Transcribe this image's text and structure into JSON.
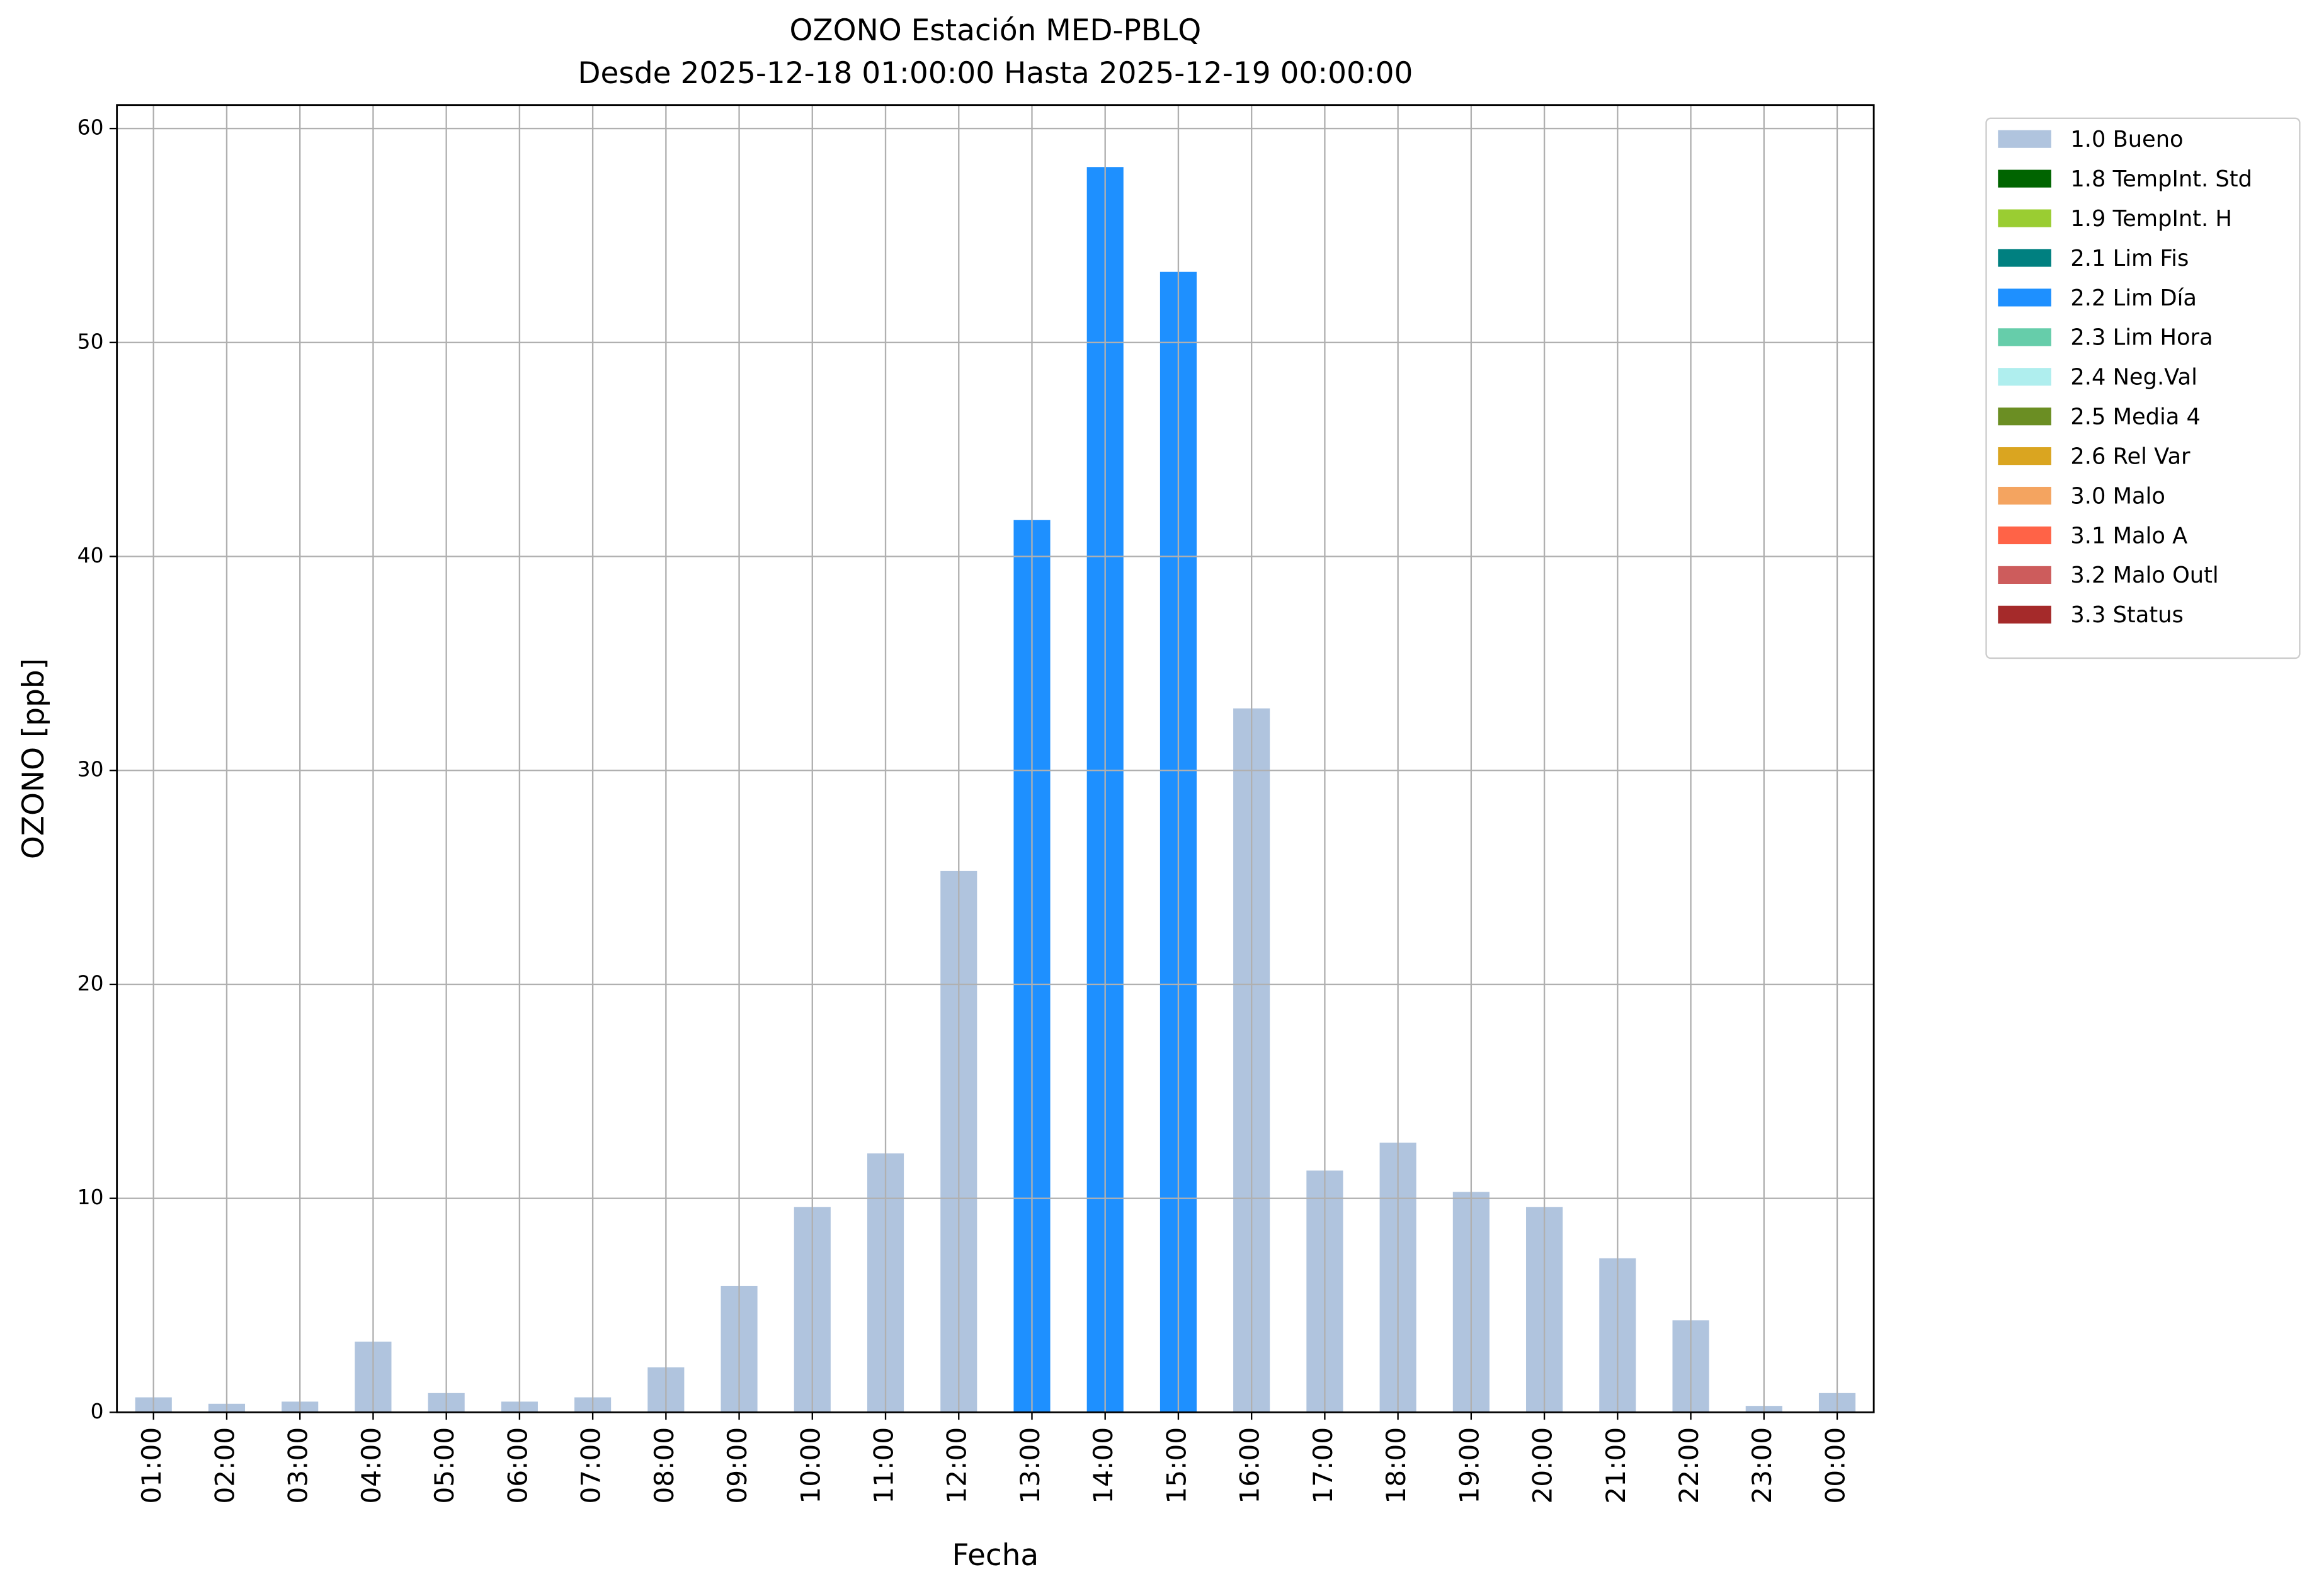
{
  "chart_data": {
    "type": "bar",
    "stacked": true,
    "title": "OZONO Estación MED-PBLQ",
    "subtitle": "Desde 2025-12-18 01:00:00 Hasta 2025-12-19 00:00:00",
    "x_label": "Fecha",
    "y_label": "OZONO [ppb]",
    "categories": [
      "01:00",
      "02:00",
      "03:00",
      "04:00",
      "05:00",
      "06:00",
      "07:00",
      "08:00",
      "09:00",
      "10:00",
      "11:00",
      "12:00",
      "13:00",
      "14:00",
      "15:00",
      "16:00",
      "17:00",
      "18:00",
      "19:00",
      "20:00",
      "21:00",
      "22:00",
      "23:00",
      "00:00"
    ],
    "series": [
      {
        "name": "1.0 Bueno",
        "color": "#b0c4de",
        "values": [
          0.7,
          0.4,
          0.5,
          3.3,
          0.9,
          0.5,
          0.7,
          2.1,
          5.9,
          9.6,
          12.1,
          25.3,
          null,
          null,
          null,
          32.9,
          11.3,
          12.6,
          10.3,
          9.6,
          7.2,
          4.3,
          0.3,
          0.9
        ]
      },
      {
        "name": "1.8 TempInt. Std",
        "color": "#006400",
        "values": [
          null,
          null,
          null,
          null,
          null,
          null,
          null,
          null,
          null,
          null,
          null,
          null,
          null,
          null,
          null,
          null,
          null,
          null,
          null,
          null,
          null,
          null,
          null,
          null
        ]
      },
      {
        "name": "1.9 TempInt. H",
        "color": "#9acd32",
        "values": [
          null,
          null,
          null,
          null,
          null,
          null,
          null,
          null,
          null,
          null,
          null,
          null,
          null,
          null,
          null,
          null,
          null,
          null,
          null,
          null,
          null,
          null,
          null,
          null
        ]
      },
      {
        "name": "2.1 Lim Fis",
        "color": "#008080",
        "values": [
          null,
          null,
          null,
          null,
          null,
          null,
          null,
          null,
          null,
          null,
          null,
          null,
          null,
          null,
          null,
          null,
          null,
          null,
          null,
          null,
          null,
          null,
          null,
          null
        ]
      },
      {
        "name": "2.2 Lim Día",
        "color": "#1e90ff",
        "values": [
          null,
          null,
          null,
          null,
          null,
          null,
          null,
          null,
          null,
          null,
          null,
          null,
          41.7,
          58.2,
          53.3,
          null,
          null,
          null,
          null,
          null,
          null,
          null,
          null,
          null
        ]
      },
      {
        "name": "2.3 Lim Hora",
        "color": "#66cdaa",
        "values": [
          null,
          null,
          null,
          null,
          null,
          null,
          null,
          null,
          null,
          null,
          null,
          null,
          null,
          null,
          null,
          null,
          null,
          null,
          null,
          null,
          null,
          null,
          null,
          null
        ]
      },
      {
        "name": "2.4 Neg.Val",
        "color": "#afeeee",
        "values": [
          null,
          null,
          null,
          null,
          null,
          null,
          null,
          null,
          null,
          null,
          null,
          null,
          null,
          null,
          null,
          null,
          null,
          null,
          null,
          null,
          null,
          null,
          null,
          null
        ]
      },
      {
        "name": "2.5 Media 4",
        "color": "#6b8e23",
        "values": [
          null,
          null,
          null,
          null,
          null,
          null,
          null,
          null,
          null,
          null,
          null,
          null,
          null,
          null,
          null,
          null,
          null,
          null,
          null,
          null,
          null,
          null,
          null,
          null
        ]
      },
      {
        "name": "2.6 Rel Var",
        "color": "#daa520",
        "values": [
          null,
          null,
          null,
          null,
          null,
          null,
          null,
          null,
          null,
          null,
          null,
          null,
          null,
          null,
          null,
          null,
          null,
          null,
          null,
          null,
          null,
          null,
          null,
          null
        ]
      },
      {
        "name": "3.0 Malo",
        "color": "#f4a460",
        "values": [
          null,
          null,
          null,
          null,
          null,
          null,
          null,
          null,
          null,
          null,
          null,
          null,
          null,
          null,
          null,
          null,
          null,
          null,
          null,
          null,
          null,
          null,
          null,
          null
        ]
      },
      {
        "name": "3.1 Malo A",
        "color": "#ff6347",
        "values": [
          null,
          null,
          null,
          null,
          null,
          null,
          null,
          null,
          null,
          null,
          null,
          null,
          null,
          null,
          null,
          null,
          null,
          null,
          null,
          null,
          null,
          null,
          null,
          null
        ]
      },
      {
        "name": "3.2 Malo Outl",
        "color": "#cd5c5c",
        "values": [
          null,
          null,
          null,
          null,
          null,
          null,
          null,
          null,
          null,
          null,
          null,
          null,
          null,
          null,
          null,
          null,
          null,
          null,
          null,
          null,
          null,
          null,
          null,
          null
        ]
      },
      {
        "name": "3.3 Status",
        "color": "#a52a2a",
        "values": [
          null,
          null,
          null,
          null,
          null,
          null,
          null,
          null,
          null,
          null,
          null,
          null,
          null,
          null,
          null,
          null,
          null,
          null,
          null,
          null,
          null,
          null,
          null,
          null
        ]
      }
    ],
    "ylim": [
      0,
      61.1
    ],
    "yticks": [
      0,
      10,
      20,
      30,
      40,
      50,
      60
    ],
    "grid": true,
    "legend": "outside-right"
  }
}
